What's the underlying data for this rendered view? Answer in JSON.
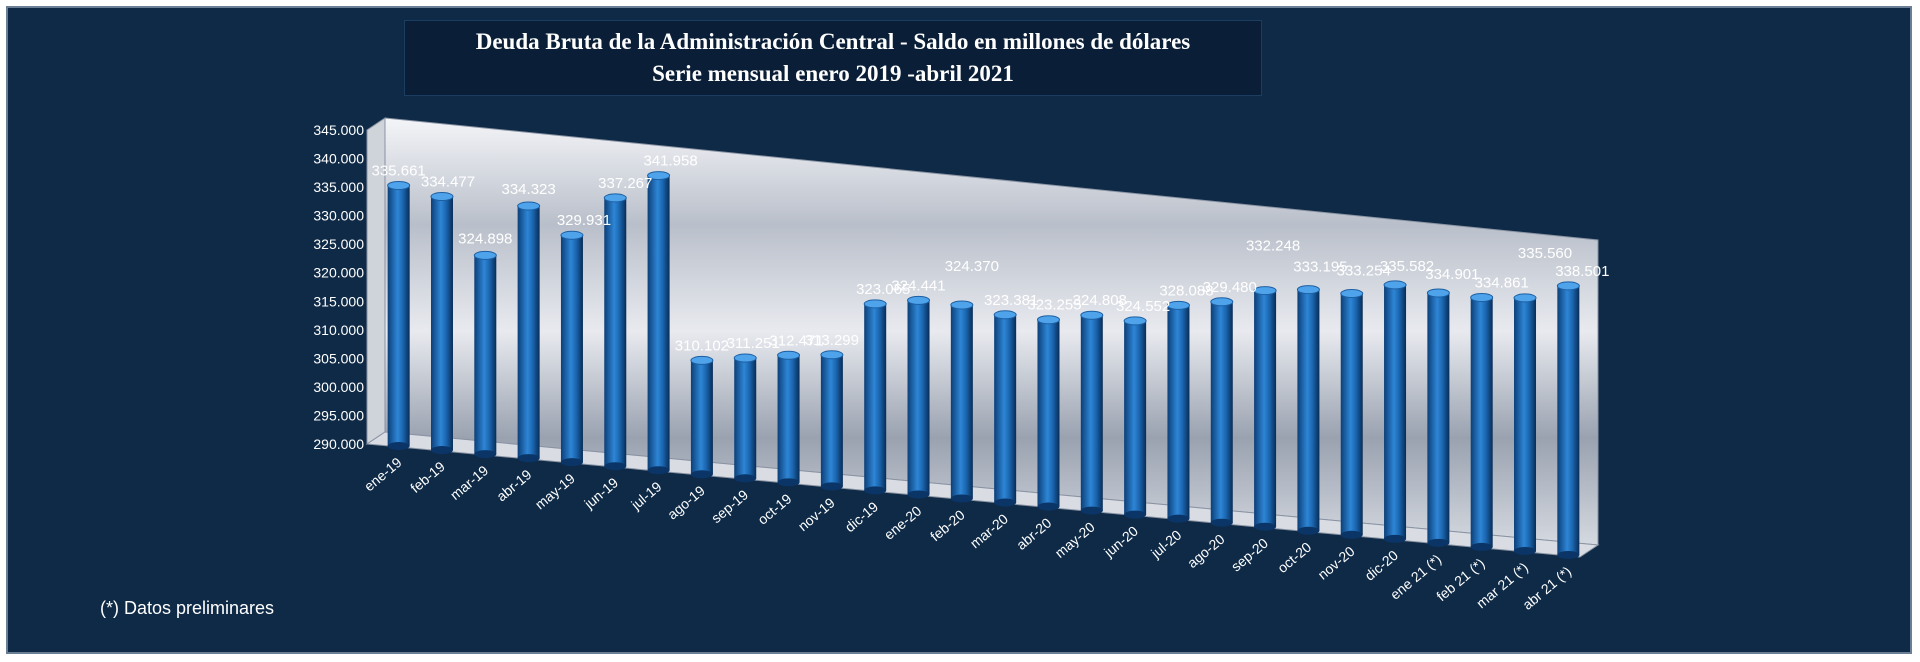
{
  "chart_data": {
    "type": "bar",
    "title": "Deuda Bruta de la Administración Central - Saldo en millones de dólares",
    "subtitle": "Serie mensual enero 2019 -abril 2021",
    "categories": [
      "ene-19",
      "feb-19",
      "mar-19",
      "abr-19",
      "may-19",
      "jun-19",
      "jul-19",
      "ago-19",
      "sep-19",
      "oct-19",
      "nov-19",
      "dic-19",
      "ene-20",
      "feb-20",
      "mar-20",
      "abr-20",
      "may-20",
      "jun-20",
      "jul-20",
      "ago-20",
      "sep-20",
      "oct-20",
      "nov-20",
      "dic-20",
      "ene 21 (*)",
      "feb 21 (*)",
      "mar 21 (*)",
      "abr 21 (*)"
    ],
    "values": [
      335661,
      334477,
      324898,
      334323,
      329931,
      337267,
      341958,
      310102,
      311251,
      312471,
      313299,
      323065,
      324441,
      324370,
      323381,
      323255,
      324808,
      324552,
      328088,
      329480,
      332248,
      333195,
      333254,
      335582,
      334901,
      334861,
      335560,
      338501
    ],
    "data_labels": [
      "335.661",
      "334.477",
      "324.898",
      "334.323",
      "329.931",
      "337.267",
      "341.958",
      "310.102",
      "311.251",
      "312.471",
      "313.299",
      "323.065",
      "324.441",
      "324.370",
      "323.381",
      "323.255",
      "324.808",
      "324.552",
      "328.088",
      "329.480",
      "332.248",
      "333.195",
      "333.254",
      "335.582",
      "334.901",
      "334.861",
      "335.560",
      "338.501"
    ],
    "y_tick_labels": [
      "290.000",
      "295.000",
      "300.000",
      "305.000",
      "310.000",
      "315.000",
      "320.000",
      "325.000",
      "330.000",
      "335.000",
      "340.000",
      "345.000"
    ],
    "ylim": [
      290000,
      345000
    ],
    "grid": false,
    "legend": "none",
    "colors": {
      "bar": "#2b7fc8",
      "background": "#0e2a47",
      "wall": "#c8ccd4"
    }
  },
  "footnote": "(*) Datos preliminares"
}
